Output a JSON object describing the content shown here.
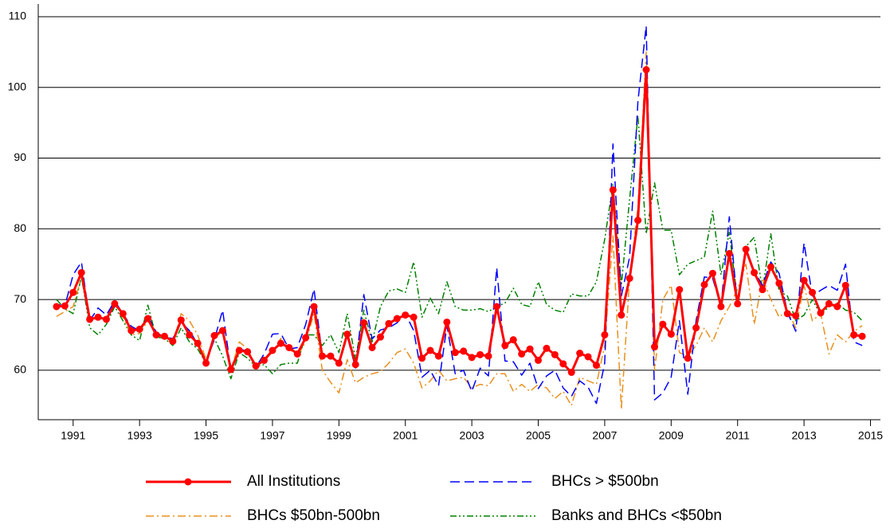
{
  "chart_data": {
    "type": "line",
    "x": [
      1990.5,
      1990.75,
      1991,
      1991.25,
      1991.5,
      1991.75,
      1992,
      1992.25,
      1992.5,
      1992.75,
      1993,
      1993.25,
      1993.5,
      1993.75,
      1994,
      1994.25,
      1994.5,
      1994.75,
      1995,
      1995.25,
      1995.5,
      1995.75,
      1996,
      1996.25,
      1996.5,
      1996.75,
      1997,
      1997.25,
      1997.5,
      1997.75,
      1998,
      1998.25,
      1998.5,
      1998.75,
      1999,
      1999.25,
      1999.5,
      1999.75,
      2000,
      2000.25,
      2000.5,
      2000.75,
      2001,
      2001.25,
      2001.5,
      2001.75,
      2002,
      2002.25,
      2002.5,
      2002.75,
      2003,
      2003.25,
      2003.5,
      2003.75,
      2004,
      2004.25,
      2004.5,
      2004.75,
      2005,
      2005.25,
      2005.5,
      2005.75,
      2006,
      2006.25,
      2006.5,
      2006.75,
      2007,
      2007.25,
      2007.5,
      2007.75,
      2008,
      2008.25,
      2008.5,
      2008.75,
      2009,
      2009.25,
      2009.5,
      2009.75,
      2010,
      2010.25,
      2010.5,
      2010.75,
      2011,
      2011.25,
      2011.5,
      2011.75,
      2012,
      2012.25,
      2012.5,
      2012.75,
      2013,
      2013.25,
      2013.5,
      2013.75,
      2014,
      2014.25,
      2014.5,
      2014.75
    ],
    "series": [
      {
        "name": "All Institutions",
        "color": "#ff0000",
        "dash": "solid",
        "marker": "circle",
        "values": [
          69,
          69.1,
          71,
          73.8,
          67.2,
          67.5,
          67.2,
          69.4,
          68,
          65.6,
          65.8,
          67.3,
          65,
          64.8,
          64.1,
          67.1,
          65,
          63.8,
          61,
          64.9,
          65.6,
          60.1,
          62.8,
          62.6,
          60.6,
          61.4,
          62.8,
          63.8,
          63.2,
          62.3,
          64.6,
          69,
          62,
          62,
          61,
          65.1,
          60.8,
          66.7,
          63.2,
          64.7,
          66.6,
          67.3,
          67.8,
          67.5,
          61.7,
          62.8,
          62,
          66.8,
          62.5,
          62.7,
          61.8,
          62.2,
          62,
          69,
          63.5,
          64.3,
          62.3,
          63,
          61.4,
          63.1,
          62.2,
          60.9,
          59.7,
          62.4,
          61.9,
          60.7,
          65,
          85.5,
          67.8,
          73,
          81.2,
          102.5,
          63.3,
          66.5,
          65.1,
          71.4,
          61.7,
          66,
          72.1,
          73.7,
          69,
          76.5,
          69.4,
          77.1,
          73.8,
          71.4,
          74.6,
          72.3,
          68,
          67.7,
          72.7,
          71,
          68.1,
          69.4,
          69,
          72,
          65,
          64.8
        ]
      },
      {
        "name": "BHCs > $500bn",
        "color": "#0000ff",
        "dash": "dashed",
        "values": [
          69.3,
          69.1,
          73.5,
          75.3,
          67,
          68.8,
          67.8,
          69.8,
          68,
          66.2,
          65.6,
          67.7,
          65.4,
          64.6,
          64.5,
          66.8,
          65.6,
          63.7,
          61.2,
          64.3,
          68.5,
          59.9,
          63,
          62.7,
          60.4,
          62.3,
          65.1,
          65.2,
          63,
          63.2,
          66.5,
          71.5,
          62,
          62,
          61.2,
          64.8,
          60.3,
          70.7,
          64.4,
          65.7,
          66,
          66.7,
          68,
          65.6,
          59,
          60,
          57.8,
          66.3,
          59.5,
          60,
          57,
          60.3,
          59.2,
          74.5,
          61.3,
          61.2,
          59.3,
          61,
          57.4,
          59.2,
          60,
          57.5,
          56.3,
          58.5,
          57.6,
          55.3,
          61,
          92,
          70.5,
          76,
          98,
          108.7,
          55.8,
          56.8,
          59,
          67,
          56.6,
          67,
          73.2,
          73,
          69,
          81.7,
          69,
          77.2,
          74,
          72,
          75.3,
          73.7,
          68.2,
          65.5,
          78,
          70.5,
          71.3,
          72,
          71.3,
          75,
          64,
          63.5
        ]
      },
      {
        "name": "BHCs $50bn-500bn",
        "color": "#e8901e",
        "dash": "dashdot",
        "values": [
          67.6,
          68.3,
          69,
          73.2,
          67.3,
          67.2,
          67,
          69.8,
          67.5,
          65,
          65.2,
          67,
          65,
          64.5,
          63.7,
          68,
          67,
          65,
          61.5,
          64.5,
          65.5,
          60,
          64,
          63,
          60.5,
          61.5,
          62.5,
          64.5,
          63,
          62,
          64,
          68,
          60,
          58.3,
          56.8,
          61.5,
          58.2,
          59,
          59.5,
          59.8,
          61,
          62.5,
          63,
          61,
          57.5,
          58.5,
          60,
          58.5,
          58.8,
          59,
          57.5,
          58,
          57.8,
          59.5,
          59.5,
          57,
          58,
          57,
          58,
          57.5,
          56,
          57,
          55,
          59,
          58.5,
          58,
          63.5,
          79,
          54.5,
          73,
          83,
          105,
          60,
          70,
          72,
          62.5,
          62,
          63.5,
          66,
          64,
          67,
          69,
          71.5,
          75,
          66.5,
          73,
          70,
          67.5,
          68.5,
          66,
          72,
          67,
          68,
          62.3,
          65,
          64,
          65.5,
          66.3
        ]
      },
      {
        "name": "Banks and BHCs <$50bn",
        "color": "#008000",
        "dash": "dashdotdot",
        "values": [
          70,
          68.7,
          68,
          73.3,
          66,
          65,
          66.5,
          69,
          67,
          65,
          64.2,
          69.2,
          64.7,
          64.5,
          63.5,
          66,
          64,
          63,
          61,
          64.5,
          62,
          58.8,
          62.5,
          61.7,
          60.5,
          60.8,
          59.5,
          60.8,
          61,
          61,
          65,
          65,
          63.5,
          65,
          62.5,
          68,
          61.5,
          68.5,
          64,
          69,
          71.2,
          71.5,
          71,
          75.3,
          67.5,
          70.2,
          68,
          72.5,
          69,
          68.5,
          68.5,
          68.7,
          68.3,
          69,
          69.5,
          71.6,
          69.3,
          69,
          72.5,
          69.3,
          68.5,
          68.2,
          70.8,
          70.5,
          70.5,
          72.5,
          78.5,
          86.3,
          72,
          84.2,
          96,
          79.3,
          86.5,
          79.8,
          79.8,
          73.5,
          75,
          75.5,
          76,
          82.5,
          73.5,
          79.5,
          69.8,
          77.5,
          78.8,
          71.3,
          79.3,
          71.2,
          70.5,
          67,
          67.8,
          70,
          67.8,
          69,
          69.5,
          68.5,
          68.2,
          67
        ]
      }
    ],
    "xlim": [
      1989.95,
      2015.3
    ],
    "xticks": [
      1991,
      1993,
      1995,
      1997,
      1999,
      2001,
      2003,
      2005,
      2007,
      2009,
      2011,
      2013,
      2015
    ],
    "ylim": [
      53,
      111.8
    ],
    "yticks": [
      60,
      70,
      80,
      90,
      100,
      110
    ],
    "grid": true,
    "legend": "bottom"
  }
}
